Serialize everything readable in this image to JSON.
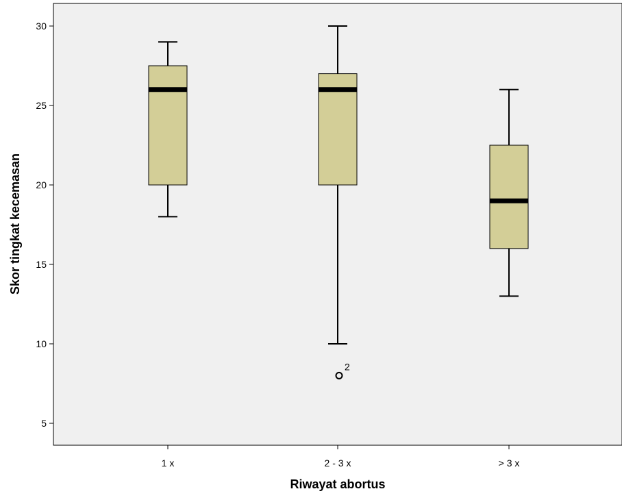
{
  "chart_data": {
    "type": "box",
    "xlabel": "Riwayat abortus",
    "ylabel": "Skor tingkat kecemasan",
    "ylim": [
      3,
      31.5
    ],
    "yticks": [
      5,
      10,
      15,
      20,
      25,
      30
    ],
    "ytick_labels": [
      "5",
      "10",
      "15",
      "20",
      "25",
      "30"
    ],
    "categories": [
      "1 x",
      "2 - 3 x",
      "> 3 x"
    ],
    "boxes": [
      {
        "category": "1 x",
        "whisker_low": 18,
        "q1": 20,
        "median": 26,
        "q3": 27.5,
        "whisker_high": 29,
        "outliers": []
      },
      {
        "category": "2 - 3 x",
        "whisker_low": 10,
        "q1": 20,
        "median": 26,
        "q3": 27,
        "whisker_high": 30,
        "outliers": [
          {
            "value": 8,
            "label": "2"
          }
        ]
      },
      {
        "category": "> 3 x",
        "whisker_low": 13,
        "q1": 16,
        "median": 19,
        "q3": 22.5,
        "whisker_high": 26,
        "outliers": []
      }
    ],
    "grid": false,
    "colors": {
      "plot_background": "#f0f0f0",
      "box_fill": "#d3ce97",
      "box_stroke": "#000000",
      "median": "#000000"
    }
  }
}
